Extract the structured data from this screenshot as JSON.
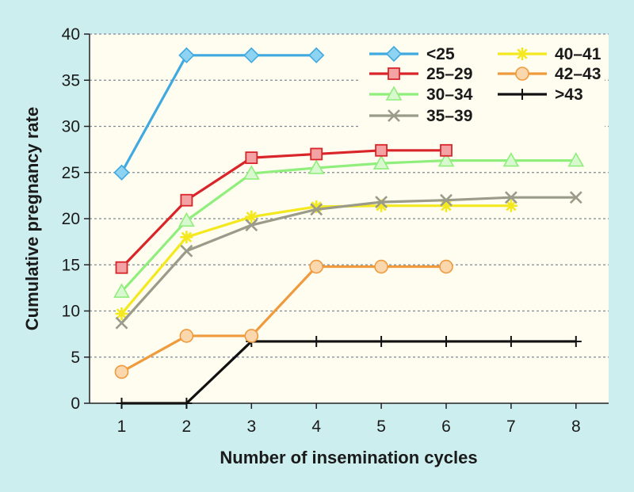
{
  "chart_data": {
    "type": "line",
    "title": "",
    "xlabel": "Number of insemination cycles",
    "ylabel": "Cumulative pregnancy rate",
    "xlim": [
      0.5,
      8.5
    ],
    "ylim": [
      0,
      40
    ],
    "x_ticks": [
      1,
      2,
      3,
      4,
      5,
      6,
      7,
      8
    ],
    "y_ticks": [
      0,
      5,
      10,
      15,
      20,
      25,
      30,
      35,
      40
    ],
    "grid": "horizontal dotted",
    "legend_position": "top-right",
    "series": [
      {
        "name": "<25",
        "color": "#3fa9e0",
        "fill": "#8fd3f3",
        "marker": "diamond",
        "x": [
          1,
          2,
          3,
          4
        ],
        "y": [
          25.0,
          37.7,
          37.7,
          37.7
        ]
      },
      {
        "name": "25–29",
        "color": "#d9252a",
        "fill": "#f3a3a3",
        "marker": "square",
        "x": [
          1,
          2,
          3,
          4,
          5,
          6
        ],
        "y": [
          14.7,
          22.0,
          26.6,
          27.0,
          27.4,
          27.4
        ]
      },
      {
        "name": "30–34",
        "color": "#90ee7c",
        "fill": "#d8f8cf",
        "marker": "triangle",
        "x": [
          1,
          2,
          3,
          4,
          5,
          6,
          7,
          8
        ],
        "y": [
          12.1,
          19.8,
          24.9,
          25.5,
          26.0,
          26.3,
          26.3,
          26.3
        ]
      },
      {
        "name": "35–39",
        "color": "#9b9b8a",
        "fill": "#9b9b8a",
        "marker": "x",
        "x": [
          1,
          2,
          3,
          4,
          5,
          6,
          7,
          8
        ],
        "y": [
          8.7,
          16.5,
          19.3,
          21.0,
          21.8,
          22.0,
          22.3,
          22.3
        ]
      },
      {
        "name": "40–41",
        "color": "#f4e81e",
        "fill": "#f4e81e",
        "marker": "star",
        "x": [
          1,
          2,
          3,
          4,
          5,
          6,
          7
        ],
        "y": [
          9.7,
          18.0,
          20.2,
          21.3,
          21.4,
          21.4,
          21.4
        ]
      },
      {
        "name": "42–43",
        "color": "#ef9a3c",
        "fill": "#fbd7ae",
        "marker": "circle",
        "x": [
          1,
          2,
          3,
          4,
          5,
          6
        ],
        "y": [
          3.4,
          7.3,
          7.3,
          14.8,
          14.8,
          14.8
        ]
      },
      {
        "name": ">43",
        "color": "#111111",
        "fill": "#111111",
        "marker": "plus",
        "x": [
          1,
          2,
          3,
          4,
          5,
          6,
          7,
          8
        ],
        "y": [
          0,
          0,
          6.7,
          6.7,
          6.7,
          6.7,
          6.7,
          6.7
        ]
      }
    ]
  }
}
